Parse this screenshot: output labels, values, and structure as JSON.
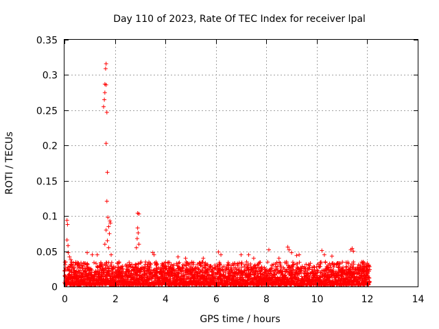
{
  "chart_data": {
    "type": "scatter",
    "title": "Day 110 of 2023, Rate Of TEC Index for receiver lpal",
    "xlabel": "GPS time / hours",
    "ylabel": "ROTI / TECUs",
    "xlim": [
      0,
      14
    ],
    "ylim": [
      0,
      0.35
    ],
    "xticks": [
      0,
      2,
      4,
      6,
      8,
      10,
      12,
      14
    ],
    "yticks": [
      0,
      0.05,
      0.1,
      0.15,
      0.2,
      0.25,
      0.3,
      0.35
    ],
    "ytick_labels": [
      "0",
      "0.05",
      "0.1",
      "0.15",
      "0.2",
      "0.25",
      "0.3",
      "0.35"
    ],
    "grid": true,
    "marker": "+",
    "color": "#ff0000",
    "series": [
      {
        "name": "ROTI",
        "spike_points": [
          [
            0.1,
            0.094
          ],
          [
            0.12,
            0.088
          ],
          [
            0.1,
            0.066
          ],
          [
            0.14,
            0.058
          ],
          [
            0.15,
            0.048
          ],
          [
            0.2,
            0.042
          ],
          [
            0.25,
            0.038
          ],
          [
            0.9,
            0.048
          ],
          [
            1.1,
            0.045
          ],
          [
            1.3,
            0.045
          ],
          [
            1.55,
            0.255
          ],
          [
            1.58,
            0.265
          ],
          [
            1.6,
            0.275
          ],
          [
            1.6,
            0.287
          ],
          [
            1.65,
            0.286
          ],
          [
            1.63,
            0.309
          ],
          [
            1.65,
            0.316
          ],
          [
            1.68,
            0.247
          ],
          [
            1.65,
            0.203
          ],
          [
            1.7,
            0.162
          ],
          [
            1.68,
            0.121
          ],
          [
            1.72,
            0.098
          ],
          [
            1.75,
            0.085
          ],
          [
            1.65,
            0.08
          ],
          [
            1.78,
            0.075
          ],
          [
            1.8,
            0.093
          ],
          [
            1.82,
            0.09
          ],
          [
            1.7,
            0.065
          ],
          [
            1.75,
            0.055
          ],
          [
            1.85,
            0.045
          ],
          [
            1.6,
            0.06
          ],
          [
            2.9,
            0.104
          ],
          [
            2.95,
            0.103
          ],
          [
            2.9,
            0.083
          ],
          [
            2.92,
            0.076
          ],
          [
            2.88,
            0.068
          ],
          [
            2.95,
            0.06
          ],
          [
            2.85,
            0.055
          ],
          [
            3.5,
            0.048
          ],
          [
            3.55,
            0.045
          ],
          [
            4.5,
            0.042
          ],
          [
            4.8,
            0.04
          ],
          [
            5.5,
            0.04
          ],
          [
            6.1,
            0.049
          ],
          [
            6.2,
            0.045
          ],
          [
            7.0,
            0.045
          ],
          [
            7.3,
            0.045
          ],
          [
            7.5,
            0.04
          ],
          [
            8.1,
            0.052
          ],
          [
            8.5,
            0.04
          ],
          [
            8.85,
            0.056
          ],
          [
            8.9,
            0.052
          ],
          [
            9.0,
            0.048
          ],
          [
            9.2,
            0.044
          ],
          [
            9.3,
            0.045
          ],
          [
            10.2,
            0.051
          ],
          [
            10.3,
            0.045
          ],
          [
            10.6,
            0.043
          ],
          [
            11.35,
            0.052
          ],
          [
            11.4,
            0.054
          ],
          [
            11.45,
            0.05
          ],
          [
            12.0,
            0.033
          ],
          [
            12.05,
            0.03
          ]
        ],
        "baseline": {
          "x_range": [
            0,
            12.1
          ],
          "typical_max": 0.025,
          "typical_min": 0.002
        }
      }
    ]
  }
}
